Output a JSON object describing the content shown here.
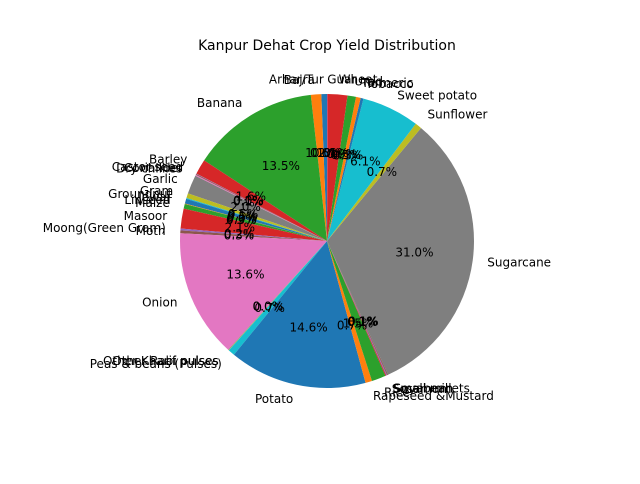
{
  "chart_data": {
    "type": "pie",
    "title": "Kanpur Dehat Crop Yield Distribution",
    "start_angle_deg": 90,
    "direction": "counterclockwise",
    "slices": [
      {
        "label": "Arhar/Tur",
        "value": 0.6,
        "pct_label": "0.6%",
        "color": "#1f77b4"
      },
      {
        "label": "Bajra",
        "value": 1.1,
        "pct_label": "1.1%",
        "color": "#ff7f0e"
      },
      {
        "label": "Banana",
        "value": 13.5,
        "pct_label": "13.5%",
        "color": "#2ca02c"
      },
      {
        "label": "Barley",
        "value": 1.6,
        "pct_label": "1.6%",
        "color": "#d62728"
      },
      {
        "label": "Castor seed",
        "value": 0.05,
        "pct_label": "0.0%",
        "color": "#9467bd"
      },
      {
        "label": "Coriander",
        "value": 0.1,
        "pct_label": "0.1%",
        "color": "#8c564b"
      },
      {
        "label": "Dry chillies",
        "value": 0.1,
        "pct_label": "0.1%",
        "color": "#e377c2"
      },
      {
        "label": "Garlic",
        "value": 2.0,
        "pct_label": "2.0%",
        "color": "#7f7f7f"
      },
      {
        "label": "Gram",
        "value": 0.5,
        "pct_label": "0.5%",
        "color": "#bcbd22"
      },
      {
        "label": "Groundnut",
        "value": 0.1,
        "pct_label": "0.1%",
        "color": "#17becf"
      },
      {
        "label": "Jowar",
        "value": 0.5,
        "pct_label": "0.5%",
        "color": "#1f77b4"
      },
      {
        "label": "Linseed",
        "value": 0.05,
        "pct_label": "0.0%",
        "color": "#ff7f0e"
      },
      {
        "label": "Maize",
        "value": 0.5,
        "pct_label": "0.5%",
        "color": "#2ca02c"
      },
      {
        "label": "Masoor",
        "value": 2.1,
        "pct_label": "2.1%",
        "color": "#d62728"
      },
      {
        "label": "Moong(Green Gram)",
        "value": 0.2,
        "pct_label": "0.2%",
        "color": "#9467bd"
      },
      {
        "label": "Moth",
        "value": 0.3,
        "pct_label": "0.3%",
        "color": "#8c564b"
      },
      {
        "label": "Onion",
        "value": 13.6,
        "pct_label": "13.6%",
        "color": "#e377c2"
      },
      {
        "label": "Other Kharif pulses",
        "value": 0.05,
        "pct_label": "0.0%",
        "color": "#7f7f7f"
      },
      {
        "label": "Other Rabi pulses",
        "value": 0.05,
        "pct_label": "0.0%",
        "color": "#bcbd22"
      },
      {
        "label": "Peas & beans (Pulses)",
        "value": 0.7,
        "pct_label": "0.7%",
        "color": "#17becf"
      },
      {
        "label": "Potato",
        "value": 14.6,
        "pct_label": "14.6%",
        "color": "#1f77b4"
      },
      {
        "label": "Rapeseed &Mustard",
        "value": 0.7,
        "pct_label": "0.7%",
        "color": "#ff7f0e"
      },
      {
        "label": "Rice",
        "value": 1.5,
        "pct_label": "1.5%",
        "color": "#2ca02c"
      },
      {
        "label": "Sesamum",
        "value": 0.1,
        "pct_label": "0.1%",
        "color": "#d62728"
      },
      {
        "label": "Small millets",
        "value": 0.1,
        "pct_label": "0.1%",
        "color": "#9467bd"
      },
      {
        "label": "Soyabean",
        "value": 0.1,
        "pct_label": "0.1%",
        "color": "#8c564b"
      },
      {
        "label": "Sugarcane",
        "value": 31.0,
        "pct_label": "31.0%",
        "color": "#7f7f7f"
      },
      {
        "label": "Sunflower",
        "value": 0.7,
        "pct_label": "0.7%",
        "color": "#bcbd22"
      },
      {
        "label": "Sweet potato",
        "value": 6.1,
        "pct_label": "6.1%",
        "color": "#17becf"
      },
      {
        "label": "Tobacco",
        "value": 0.3,
        "pct_label": "0.3%",
        "color": "#1f77b4"
      },
      {
        "label": "Turmeric",
        "value": 0.5,
        "pct_label": "0.5%",
        "color": "#ff7f0e"
      },
      {
        "label": "Urad",
        "value": 0.9,
        "pct_label": "0.9%",
        "color": "#2ca02c"
      },
      {
        "label": "Wheat",
        "value": 2.1,
        "pct_label": "2.1%",
        "color": "#d62728"
      },
      {
        "label": "Guar",
        "value": 0.05,
        "pct_label": "0.0%",
        "color": "#9467bd"
      }
    ]
  }
}
